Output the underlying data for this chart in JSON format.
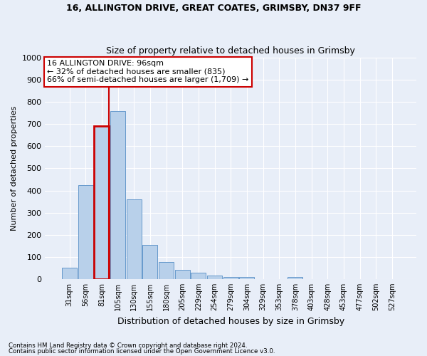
{
  "title1": "16, ALLINGTON DRIVE, GREAT COATES, GRIMSBY, DN37 9FF",
  "title2": "Size of property relative to detached houses in Grimsby",
  "xlabel": "Distribution of detached houses by size in Grimsby",
  "ylabel": "Number of detached properties",
  "footnote1": "Contains HM Land Registry data © Crown copyright and database right 2024.",
  "footnote2": "Contains public sector information licensed under the Open Government Licence v3.0.",
  "annotation_line1": "16 ALLINGTON DRIVE: 96sqm",
  "annotation_line2": "← 32% of detached houses are smaller (835)",
  "annotation_line3": "66% of semi-detached houses are larger (1,709) →",
  "bar_labels": [
    "31sqm",
    "56sqm",
    "81sqm",
    "105sqm",
    "130sqm",
    "155sqm",
    "180sqm",
    "205sqm",
    "229sqm",
    "254sqm",
    "279sqm",
    "304sqm",
    "329sqm",
    "353sqm",
    "378sqm",
    "403sqm",
    "428sqm",
    "453sqm",
    "477sqm",
    "502sqm",
    "527sqm"
  ],
  "bar_values": [
    50,
    425,
    690,
    760,
    360,
    155,
    75,
    40,
    27,
    17,
    10,
    8,
    0,
    0,
    10,
    0,
    0,
    0,
    0,
    0,
    0
  ],
  "bar_color": "#b8d0ea",
  "bar_edge_color": "#6699cc",
  "highlight_bar_index": 2,
  "highlight_color": "#cc0000",
  "ylim": [
    0,
    1000
  ],
  "yticks": [
    0,
    100,
    200,
    300,
    400,
    500,
    600,
    700,
    800,
    900,
    1000
  ],
  "bg_color": "#e8eef8",
  "grid_color": "#ffffff",
  "annotation_box_color": "#cc0000",
  "annotation_box_fill": "#ffffff"
}
